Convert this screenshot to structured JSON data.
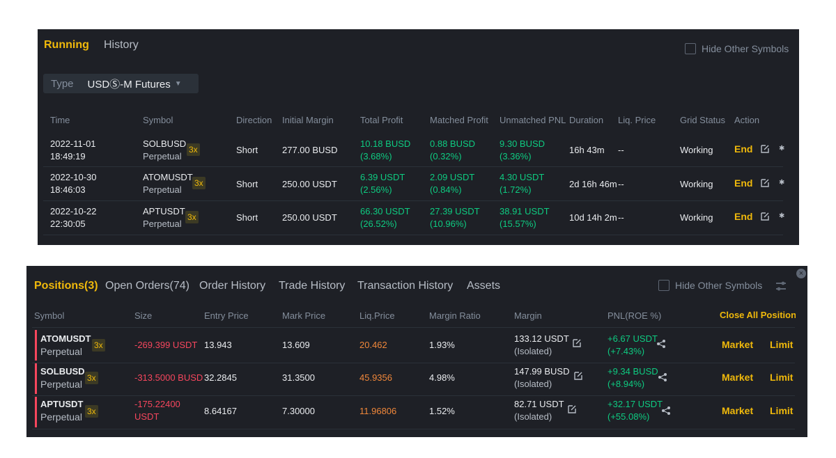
{
  "top_panel": {
    "tabs": [
      {
        "label": "Running",
        "active": true
      },
      {
        "label": "History",
        "active": false
      }
    ],
    "hide_other_symbols": "Hide Other Symbols",
    "type_label": "Type",
    "type_value": "USDⓈ-M Futures",
    "columns": [
      "Time",
      "Symbol",
      "Direction",
      "Initial Margin",
      "Total Profit",
      "Matched Profit",
      "Unmatched PNL",
      "Duration",
      "Liq. Price",
      "Grid Status",
      "Action"
    ],
    "rows": [
      {
        "date": "2022-11-01",
        "time": "18:49:19",
        "symbol": "SOLBUSD",
        "contract": "Perpetual",
        "leverage": "3x",
        "direction": "Short",
        "initial_margin": "277.00 BUSD",
        "total_profit": "10.18 BUSD",
        "total_profit_pct": "(3.68%)",
        "matched_profit": "0.88 BUSD",
        "matched_profit_pct": "(0.32%)",
        "unmatched_pnl": "9.30 BUSD",
        "unmatched_pnl_pct": "(3.36%)",
        "duration": "16h 43m",
        "liq_price": "--",
        "status": "Working",
        "action": "End"
      },
      {
        "date": "2022-10-30",
        "time": "18:46:03",
        "symbol": "ATOMUSDT",
        "contract": "Perpetual",
        "leverage": "3x",
        "direction": "Short",
        "initial_margin": "250.00 USDT",
        "total_profit": "6.39 USDT",
        "total_profit_pct": "(2.56%)",
        "matched_profit": "2.09 USDT",
        "matched_profit_pct": "(0.84%)",
        "unmatched_pnl": "4.30 USDT",
        "unmatched_pnl_pct": "(1.72%)",
        "duration": "2d 16h 46m",
        "liq_price": "--",
        "status": "Working",
        "action": "End"
      },
      {
        "date": "2022-10-22",
        "time": "22:30:05",
        "symbol": "APTUSDT",
        "contract": "Perpetual",
        "leverage": "3x",
        "direction": "Short",
        "initial_margin": "250.00 USDT",
        "total_profit": "66.30 USDT",
        "total_profit_pct": "(26.52%)",
        "matched_profit": "27.39 USDT",
        "matched_profit_pct": "(10.96%)",
        "unmatched_pnl": "38.91 USDT",
        "unmatched_pnl_pct": "(15.57%)",
        "duration": "10d 14h 2m",
        "liq_price": "--",
        "status": "Working",
        "action": "End"
      }
    ]
  },
  "bottom_panel": {
    "tabs": [
      {
        "label": "Positions(3)",
        "active": true
      },
      {
        "label": "Open Orders(74)",
        "active": false
      },
      {
        "label": "Order History",
        "active": false
      },
      {
        "label": "Trade History",
        "active": false
      },
      {
        "label": "Transaction History",
        "active": false
      },
      {
        "label": "Assets",
        "active": false
      }
    ],
    "hide_other_symbols": "Hide Other Symbols",
    "columns": [
      "Symbol",
      "Size",
      "Entry Price",
      "Mark Price",
      "Liq.Price",
      "Margin Ratio",
      "Margin",
      "PNL(ROE %)"
    ],
    "close_all": "Close All Positions",
    "rows": [
      {
        "symbol": "ATOMUSDT",
        "contract": "Perpetual",
        "leverage": "3x",
        "size_1": "-269.399 USDT",
        "size_2": "",
        "entry_price": "13.943",
        "mark_price": "13.609",
        "liq_price": "20.462",
        "margin_ratio": "1.93%",
        "margin": "133.12 USDT",
        "margin_mode": "(Isolated)",
        "pnl": "+6.67 USDT",
        "roe": "(+7.43%)",
        "market": "Market",
        "limit": "Limit"
      },
      {
        "symbol": "SOLBUSD",
        "contract": "Perpetual",
        "leverage": "3x",
        "size_1": "-313.5000 BUSD",
        "size_2": "",
        "entry_price": "32.2845",
        "mark_price": "31.3500",
        "liq_price": "45.9356",
        "margin_ratio": "4.98%",
        "margin": "147.99 BUSD",
        "margin_mode": "(Isolated)",
        "pnl": "+9.34 BUSD",
        "roe": "(+8.94%)",
        "market": "Market",
        "limit": "Limit"
      },
      {
        "symbol": "APTUSDT",
        "contract": "Perpetual",
        "leverage": "3x",
        "size_1": "-175.22400",
        "size_2": "USDT",
        "entry_price": "8.64167",
        "mark_price": "7.30000",
        "liq_price": "11.96806",
        "margin_ratio": "1.52%",
        "margin": "82.71 USDT",
        "margin_mode": "(Isolated)",
        "pnl": "+32.17 USDT",
        "roe": "(+55.08%)",
        "market": "Market",
        "limit": "Limit"
      }
    ]
  },
  "colors": {
    "accent": "#f0b90b",
    "profit": "#0ecb81",
    "loss": "#f6465d",
    "liq": "#f0873a",
    "panel_bg": "#1e2026"
  }
}
